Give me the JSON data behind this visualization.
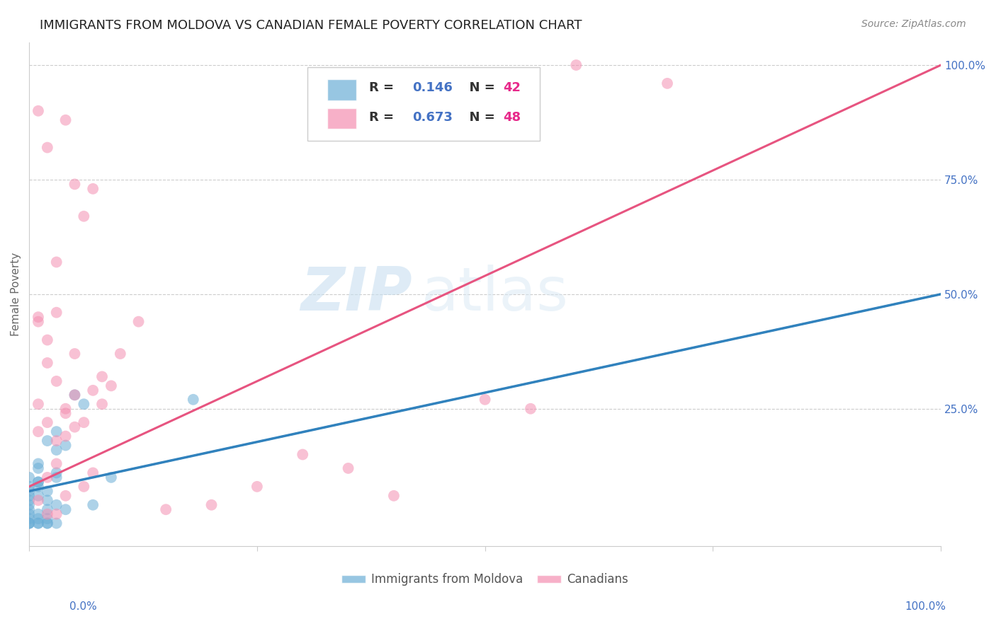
{
  "title": "IMMIGRANTS FROM MOLDOVA VS CANADIAN FEMALE POVERTY CORRELATION CHART",
  "source": "Source: ZipAtlas.com",
  "ylabel": "Female Poverty",
  "legend_blue_r": "R = 0.146",
  "legend_blue_n": "N = 42",
  "legend_pink_r": "R = 0.673",
  "legend_pink_n": "N = 48",
  "legend_blue_label": "Immigrants from Moldova",
  "legend_pink_label": "Canadians",
  "watermark_zip": "ZIP",
  "watermark_atlas": "atlas",
  "blue_color": "#6baed6",
  "pink_color": "#f48fb1",
  "blue_line_color": "#3182bd",
  "pink_line_color": "#e75480",
  "blue_scatter": [
    [
      0.002,
      0.18
    ],
    [
      0.003,
      0.16
    ],
    [
      0.001,
      0.08
    ],
    [
      0.002,
      0.05
    ],
    [
      0.001,
      0.06
    ],
    [
      0.003,
      0.04
    ],
    [
      0.002,
      0.07
    ],
    [
      0.001,
      0.09
    ],
    [
      0.004,
      0.03
    ],
    [
      0.001,
      0.12
    ],
    [
      0.002,
      0.03
    ],
    [
      0.003,
      0.1
    ],
    [
      0.001,
      0.02
    ],
    [
      0.002,
      0.01
    ],
    [
      0.003,
      0.0
    ],
    [
      0.001,
      0.01
    ],
    [
      0.002,
      0.0
    ],
    [
      0.001,
      0.0
    ],
    [
      0.0,
      0.03
    ],
    [
      0.0,
      0.05
    ],
    [
      0.0,
      0.07
    ],
    [
      0.0,
      0.08
    ],
    [
      0.0,
      0.1
    ],
    [
      0.0,
      0.06
    ],
    [
      0.0,
      0.04
    ],
    [
      0.0,
      0.02
    ],
    [
      0.0,
      0.01
    ],
    [
      0.0,
      0.0
    ],
    [
      0.0,
      0.0
    ],
    [
      0.001,
      0.0
    ],
    [
      0.0,
      0.0
    ],
    [
      0.001,
      0.13
    ],
    [
      0.001,
      0.09
    ],
    [
      0.002,
      0.0
    ],
    [
      0.005,
      0.28
    ],
    [
      0.003,
      0.2
    ],
    [
      0.006,
      0.26
    ],
    [
      0.004,
      0.17
    ],
    [
      0.003,
      0.11
    ],
    [
      0.018,
      0.27
    ],
    [
      0.007,
      0.04
    ],
    [
      0.009,
      0.1
    ]
  ],
  "pink_scatter": [
    [
      0.001,
      0.44
    ],
    [
      0.002,
      0.82
    ],
    [
      0.001,
      0.26
    ],
    [
      0.003,
      0.46
    ],
    [
      0.002,
      0.35
    ],
    [
      0.003,
      0.31
    ],
    [
      0.005,
      0.37
    ],
    [
      0.004,
      0.24
    ],
    [
      0.005,
      0.28
    ],
    [
      0.008,
      0.32
    ],
    [
      0.007,
      0.29
    ],
    [
      0.009,
      0.3
    ],
    [
      0.01,
      0.37
    ],
    [
      0.012,
      0.44
    ],
    [
      0.001,
      0.9
    ],
    [
      0.004,
      0.88
    ],
    [
      0.005,
      0.74
    ],
    [
      0.007,
      0.73
    ],
    [
      0.003,
      0.57
    ],
    [
      0.006,
      0.67
    ],
    [
      0.001,
      0.2
    ],
    [
      0.002,
      0.22
    ],
    [
      0.003,
      0.18
    ],
    [
      0.004,
      0.19
    ],
    [
      0.005,
      0.21
    ],
    [
      0.006,
      0.08
    ],
    [
      0.007,
      0.11
    ],
    [
      0.004,
      0.06
    ],
    [
      0.003,
      0.13
    ],
    [
      0.002,
      0.1
    ],
    [
      0.001,
      0.05
    ],
    [
      0.002,
      0.02
    ],
    [
      0.003,
      0.02
    ],
    [
      0.001,
      0.45
    ],
    [
      0.002,
      0.4
    ],
    [
      0.004,
      0.25
    ],
    [
      0.006,
      0.22
    ],
    [
      0.008,
      0.26
    ],
    [
      0.05,
      0.27
    ],
    [
      0.06,
      1.0
    ],
    [
      0.07,
      0.96
    ],
    [
      0.055,
      0.25
    ],
    [
      0.04,
      0.06
    ],
    [
      0.035,
      0.12
    ],
    [
      0.03,
      0.15
    ],
    [
      0.025,
      0.08
    ],
    [
      0.02,
      0.04
    ],
    [
      0.015,
      0.03
    ]
  ],
  "blue_trend_x": [
    0.0,
    0.1
  ],
  "blue_trend_y": [
    0.07,
    0.5
  ],
  "pink_trend_x": [
    0.0,
    0.1
  ],
  "pink_trend_y": [
    0.08,
    1.0
  ],
  "xlim": [
    0.0,
    0.1
  ],
  "ylim": [
    -0.05,
    1.05
  ],
  "grid_lines": [
    0.25,
    0.5,
    0.75,
    1.0
  ]
}
